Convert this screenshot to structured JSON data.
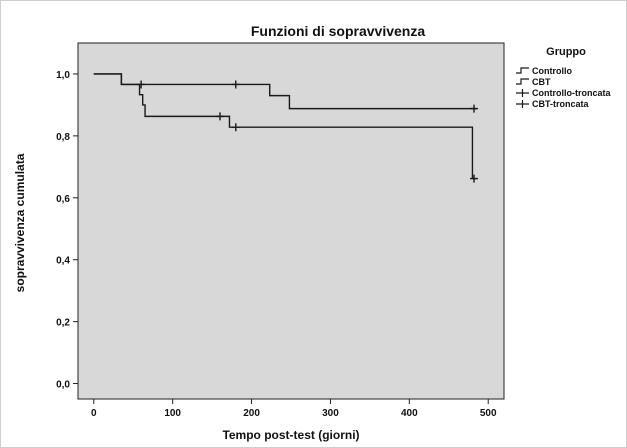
{
  "chart_data": {
    "type": "line",
    "title": "Funzioni di sopravvivenza",
    "xlabel": "Tempo post-test (giorni)",
    "ylabel": "sopravvivenza cumulata",
    "xlim": [
      -20,
      520
    ],
    "ylim": [
      -0.05,
      1.1
    ],
    "xticks": [
      0,
      100,
      200,
      300,
      400,
      500
    ],
    "yticks": [
      "0,0",
      "0,2",
      "0,4",
      "0,6",
      "0,8",
      "1,0"
    ],
    "ytick_values": [
      0.0,
      0.2,
      0.4,
      0.6,
      0.8,
      1.0
    ],
    "grid": false,
    "legend_position": "right",
    "legend_title": "Gruppo",
    "legend": [
      {
        "label": "Controllo",
        "kind": "step"
      },
      {
        "label": "CBT",
        "kind": "step"
      },
      {
        "label": "Controllo-troncata",
        "kind": "censor"
      },
      {
        "label": "CBT-troncata",
        "kind": "censor"
      }
    ],
    "series": [
      {
        "name": "Controllo",
        "steps": [
          [
            0,
            1.0
          ],
          [
            35,
            0.966
          ],
          [
            58,
            0.933
          ],
          [
            62,
            0.9
          ],
          [
            65,
            0.863
          ],
          [
            168,
            0.863
          ],
          [
            172,
            0.828
          ],
          [
            480,
            0.828
          ],
          [
            480,
            0.662
          ],
          [
            485,
            0.662
          ]
        ],
        "censored": [
          [
            160,
            0.863
          ],
          [
            180,
            0.828
          ],
          [
            482,
            0.662
          ]
        ]
      },
      {
        "name": "CBT",
        "steps": [
          [
            0,
            1.0
          ],
          [
            35,
            0.966
          ],
          [
            220,
            0.966
          ],
          [
            223,
            0.93
          ],
          [
            245,
            0.93
          ],
          [
            248,
            0.888
          ],
          [
            485,
            0.888
          ]
        ],
        "censored": [
          [
            60,
            0.966
          ],
          [
            180,
            0.966
          ],
          [
            482,
            0.888
          ]
        ]
      }
    ]
  },
  "colors": {
    "plot_background": "#d8d8d8",
    "line": "#1a1a1a",
    "background": "#ffffff"
  }
}
